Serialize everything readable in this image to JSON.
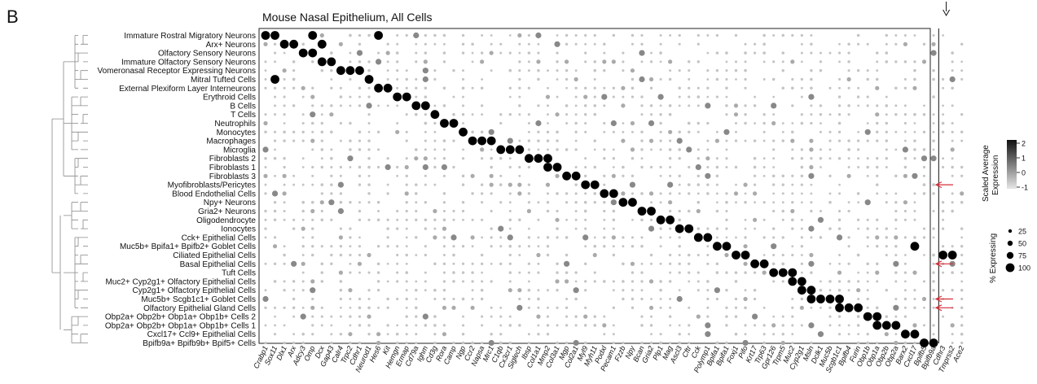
{
  "panel_letter": "B",
  "chart_data": {
    "type": "dotplot",
    "title": "Mouse Nasal Epithelium, All Cells",
    "rows": [
      "Immature Rostral Migratory Neurons",
      "Arx+ Neurons",
      "Olfactory Sensory Neurons",
      "Immature Olfactory Sensory Neurons",
      "Vomeronasal Receptor Expressing Neurons",
      "Mitral Tufted Cells",
      "External Plexiform Layer Interneurons",
      "Erythroid Cells",
      "B Cells",
      "T Cells",
      "Neutrophils",
      "Monocytes",
      "Macrophages",
      "Microglia",
      "Fibroblasts 2",
      "Fibroblasts 1",
      "Fibroblasts 3",
      "Myofibroblasts/Pericytes",
      "Blood Endothelial Cells",
      "Npy+ Neurons",
      "Gria2+ Neurons",
      "Oligodendrocyte",
      "Ionocytes",
      "Cck+ Epithelial Cells",
      "Muc5b+ Bpifa1+ Bpifb2+ Goblet Cells",
      "Ciliated Epithelial Cells",
      "Basal Epithelial Cells",
      "Tuft Cells",
      "Muc2+ Cyp2g1+ Olfactory Epithelial Cells",
      "Cyp2g1+ Olfactory Epithelial Cells",
      "Muc5b+ Scgb1c1+ Goblet Cells",
      "Olfactory Epithelial Gland Cells",
      "Obp2a+ Obp2b+ Obp1a+ Obp1b+ Cells 2",
      "Obp2a+ Obp2b+ Obp1a+ Obp1b+ Cells 1",
      "Cxcl17+ Ccl9+ Epithelial Cells",
      "Bpifb9a+ Bpifb9b+ Bpif5+ Cells"
    ],
    "genes": [
      "Crabp1",
      "Sox11",
      "Dlx1",
      "Arx",
      "Adcy3",
      "Omp",
      "Dcx",
      "Gap43",
      "Calr4",
      "Trpc2",
      "Cdhr1",
      "Neurod1",
      "Hes6",
      "Kit",
      "Hemgn",
      "Ermap",
      "Cd79a",
      "Ighm",
      "Cd3g",
      "Rora",
      "Camp",
      "Ngp",
      "Ccr2",
      "Napsa",
      "Mrc1",
      "C1qb",
      "Cx3cr1",
      "Siglech",
      "Ibsp",
      "Col1a1",
      "Mmp2",
      "Col3a1",
      "Mgp",
      "Col2a1",
      "Myl9",
      "Myh11",
      "Podxl",
      "Pecam1",
      "Fzzb",
      "Npy",
      "Bcan",
      "Gria2",
      "Plp1",
      "Mag",
      "Ascl3",
      "Cftr",
      "Cck",
      "Polymp1",
      "Bpifa1",
      "Bpifa1",
      "Foxj1",
      "Pifo",
      "Krt17",
      "Trp63",
      "Gpr126",
      "Trpm5",
      "Muc2",
      "Cyp2g1",
      "Msln",
      "Dclk1",
      "Muc5b",
      "Scgb1c1",
      "Bpifb4",
      "Furin",
      "Obp1b",
      "Obp1a",
      "Obp2b",
      "Obp2a",
      "Barx2",
      "Cxcl17",
      "Bpifb5",
      "Bpifb9a",
      "Cdhr3",
      "Tmprss2",
      "Ace2"
    ],
    "high_expression": [
      {
        "row": 0,
        "genes": [
          0,
          1,
          12,
          5
        ]
      },
      {
        "row": 1,
        "genes": [
          2,
          3,
          6
        ]
      },
      {
        "row": 2,
        "genes": [
          4,
          5
        ]
      },
      {
        "row": 3,
        "genes": [
          6,
          7
        ]
      },
      {
        "row": 4,
        "genes": [
          8,
          9,
          10
        ]
      },
      {
        "row": 5,
        "genes": [
          1,
          11
        ]
      },
      {
        "row": 6,
        "genes": [
          12,
          13
        ]
      },
      {
        "row": 7,
        "genes": [
          14,
          15
        ]
      },
      {
        "row": 8,
        "genes": [
          16,
          17
        ]
      },
      {
        "row": 9,
        "genes": [
          18
        ]
      },
      {
        "row": 10,
        "genes": [
          19,
          20
        ]
      },
      {
        "row": 11,
        "genes": [
          21
        ]
      },
      {
        "row": 12,
        "genes": [
          22,
          23,
          24
        ]
      },
      {
        "row": 13,
        "genes": [
          25,
          26,
          27
        ]
      },
      {
        "row": 14,
        "genes": [
          28,
          29,
          30
        ]
      },
      {
        "row": 15,
        "genes": [
          30,
          31
        ]
      },
      {
        "row": 16,
        "genes": [
          32,
          33
        ]
      },
      {
        "row": 17,
        "genes": [
          34,
          35
        ]
      },
      {
        "row": 18,
        "genes": [
          36,
          37
        ]
      },
      {
        "row": 19,
        "genes": [
          38,
          39
        ]
      },
      {
        "row": 20,
        "genes": [
          40,
          41
        ]
      },
      {
        "row": 21,
        "genes": [
          42,
          43
        ]
      },
      {
        "row": 22,
        "genes": [
          44,
          45
        ]
      },
      {
        "row": 23,
        "genes": [
          46,
          47
        ]
      },
      {
        "row": 24,
        "genes": [
          48,
          49,
          69
        ]
      },
      {
        "row": 25,
        "genes": [
          50,
          51,
          72,
          73
        ]
      },
      {
        "row": 26,
        "genes": [
          52,
          53
        ]
      },
      {
        "row": 27,
        "genes": [
          54,
          55,
          56
        ]
      },
      {
        "row": 28,
        "genes": [
          56,
          57
        ]
      },
      {
        "row": 29,
        "genes": [
          57,
          58
        ]
      },
      {
        "row": 30,
        "genes": [
          58,
          59,
          60,
          61
        ]
      },
      {
        "row": 31,
        "genes": [
          61,
          62,
          63
        ]
      },
      {
        "row": 32,
        "genes": [
          64,
          65
        ]
      },
      {
        "row": 33,
        "genes": [
          65,
          66,
          67
        ]
      },
      {
        "row": 34,
        "genes": [
          68,
          69
        ]
      },
      {
        "row": 35,
        "genes": [
          70,
          71
        ]
      }
    ],
    "vertical_divider_after_gene": "Bpifb9a",
    "arrow_columns": [
      "Cdhr3"
    ],
    "arrow_rows": [
      "Myofibroblasts/Pericytes",
      "Basal Epithelial Cells",
      "Muc5b+ Scgb1c1+ Goblet Cells",
      "Olfactory Epithelial Gland Cells"
    ],
    "color_legend": {
      "title_line1": "Scaled Average",
      "title_line2": "Expression",
      "ticks": [
        2,
        1,
        0,
        -1
      ]
    },
    "size_legend": {
      "title": "% Expressing",
      "values": [
        25,
        50,
        75,
        100
      ]
    }
  }
}
